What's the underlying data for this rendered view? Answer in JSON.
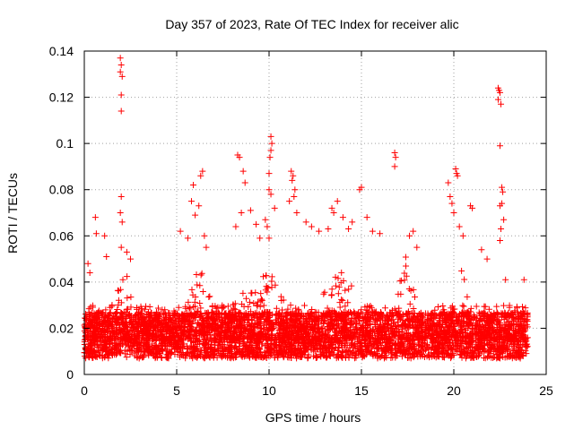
{
  "chart_data": {
    "type": "scatter",
    "title": "Day 357 of 2023, Rate Of TEC Index for receiver alic",
    "xlabel": "GPS time / hours",
    "ylabel": "ROTI / TECUs",
    "xlim": [
      0,
      25
    ],
    "ylim": [
      0,
      0.14
    ],
    "x_ticks": [
      0,
      5,
      10,
      15,
      20,
      25
    ],
    "y_ticks": [
      0,
      0.02,
      0.04,
      0.06,
      0.08,
      0.1,
      0.12,
      0.14
    ],
    "x_tick_labels": [
      "0",
      "5",
      "10",
      "15",
      "20",
      "25"
    ],
    "y_tick_labels": [
      "0",
      "0.02",
      "0.04",
      "0.06",
      "0.08",
      "0.1",
      "0.12",
      "0.14"
    ],
    "grid": true,
    "marker": "plus",
    "series_color": "#ff0000",
    "series": [
      {
        "points": [
          [
            1.95,
            0.137
          ],
          [
            2.0,
            0.134
          ],
          [
            1.95,
            0.131
          ],
          [
            2.05,
            0.129
          ],
          [
            2.0,
            0.121
          ],
          [
            2.0,
            0.114
          ],
          [
            2.0,
            0.077
          ],
          [
            1.95,
            0.07
          ],
          [
            2.05,
            0.066
          ],
          [
            2.0,
            0.055
          ],
          [
            0.6,
            0.068
          ],
          [
            0.65,
            0.061
          ],
          [
            1.1,
            0.06
          ],
          [
            1.2,
            0.051
          ],
          [
            2.3,
            0.053
          ],
          [
            2.5,
            0.05
          ],
          [
            0.2,
            0.048
          ],
          [
            0.3,
            0.044
          ],
          [
            5.2,
            0.062
          ],
          [
            5.6,
            0.059
          ],
          [
            5.8,
            0.075
          ],
          [
            5.9,
            0.082
          ],
          [
            6.0,
            0.069
          ],
          [
            6.2,
            0.073
          ],
          [
            6.3,
            0.086
          ],
          [
            6.4,
            0.088
          ],
          [
            6.5,
            0.06
          ],
          [
            6.6,
            0.055
          ],
          [
            8.3,
            0.095
          ],
          [
            8.4,
            0.094
          ],
          [
            8.6,
            0.088
          ],
          [
            8.7,
            0.083
          ],
          [
            8.5,
            0.07
          ],
          [
            8.2,
            0.064
          ],
          [
            9.0,
            0.071
          ],
          [
            9.3,
            0.065
          ],
          [
            9.5,
            0.059
          ],
          [
            9.8,
            0.067
          ],
          [
            9.9,
            0.064
          ],
          [
            10.0,
            0.08
          ],
          [
            10.1,
            0.078
          ],
          [
            10.0,
            0.087
          ],
          [
            10.05,
            0.094
          ],
          [
            10.1,
            0.097
          ],
          [
            10.15,
            0.1
          ],
          [
            10.1,
            0.103
          ],
          [
            10.3,
            0.072
          ],
          [
            10.0,
            0.059
          ],
          [
            11.2,
            0.088
          ],
          [
            11.3,
            0.086
          ],
          [
            11.25,
            0.084
          ],
          [
            11.4,
            0.08
          ],
          [
            11.1,
            0.075
          ],
          [
            11.35,
            0.077
          ],
          [
            11.5,
            0.07
          ],
          [
            12.0,
            0.066
          ],
          [
            12.3,
            0.064
          ],
          [
            12.7,
            0.062
          ],
          [
            13.2,
            0.063
          ],
          [
            13.4,
            0.072
          ],
          [
            13.5,
            0.07
          ],
          [
            13.7,
            0.075
          ],
          [
            14.0,
            0.068
          ],
          [
            14.3,
            0.063
          ],
          [
            14.5,
            0.066
          ],
          [
            14.9,
            0.08
          ],
          [
            15.0,
            0.081
          ],
          [
            15.3,
            0.068
          ],
          [
            15.6,
            0.062
          ],
          [
            16.0,
            0.061
          ],
          [
            16.8,
            0.096
          ],
          [
            16.85,
            0.094
          ],
          [
            16.8,
            0.09
          ],
          [
            17.6,
            0.06
          ],
          [
            17.8,
            0.062
          ],
          [
            18.0,
            0.055
          ],
          [
            19.7,
            0.083
          ],
          [
            19.8,
            0.077
          ],
          [
            19.9,
            0.074
          ],
          [
            20.0,
            0.07
          ],
          [
            20.1,
            0.089
          ],
          [
            20.15,
            0.087
          ],
          [
            20.2,
            0.086
          ],
          [
            20.3,
            0.064
          ],
          [
            20.5,
            0.06
          ],
          [
            20.9,
            0.073
          ],
          [
            21.0,
            0.072
          ],
          [
            21.5,
            0.054
          ],
          [
            21.8,
            0.05
          ],
          [
            22.4,
            0.124
          ],
          [
            22.45,
            0.123
          ],
          [
            22.5,
            0.122
          ],
          [
            22.4,
            0.119
          ],
          [
            22.55,
            0.117
          ],
          [
            22.5,
            0.099
          ],
          [
            22.6,
            0.081
          ],
          [
            22.65,
            0.079
          ],
          [
            22.6,
            0.074
          ],
          [
            22.5,
            0.073
          ],
          [
            22.7,
            0.067
          ],
          [
            22.55,
            0.063
          ],
          [
            22.5,
            0.058
          ],
          [
            22.8,
            0.041
          ],
          [
            23.8,
            0.041
          ]
        ],
        "dense_band": {
          "x_range": [
            0,
            24
          ],
          "baseline_min": 0.003,
          "baseline_median": 0.015,
          "typical_max": 0.03,
          "enhanced_intervals": [
            {
              "x": [
                1.5,
                2.8
              ],
              "max": 0.047
            },
            {
              "x": [
                5.5,
                7.0
              ],
              "max": 0.048
            },
            {
              "x": [
                8.0,
                11.5
              ],
              "max": 0.047
            },
            {
              "x": [
                12.5,
                15.0
              ],
              "max": 0.05
            },
            {
              "x": [
                16.8,
                18.0
              ],
              "max": 0.052
            },
            {
              "x": [
                19.8,
                21.0
              ],
              "max": 0.046
            }
          ]
        }
      }
    ]
  }
}
